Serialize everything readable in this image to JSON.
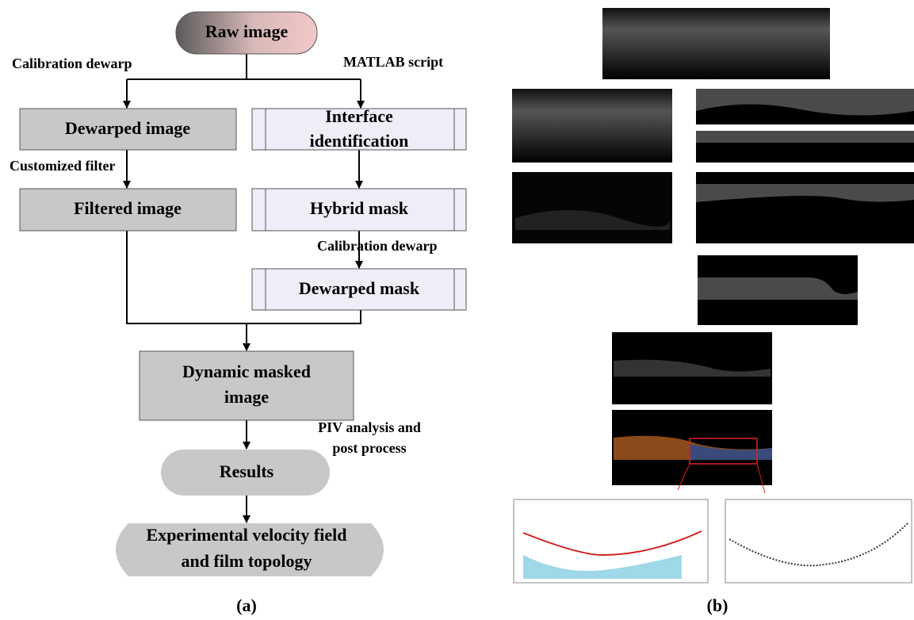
{
  "flowchart": {
    "nodes": [
      {
        "label": [
          "Raw image"
        ]
      },
      {
        "label": [
          "Dewarped image"
        ]
      },
      {
        "label": [
          "Interface",
          "identification"
        ]
      },
      {
        "label": [
          "Filtered image"
        ]
      },
      {
        "label": [
          "Hybrid mask"
        ]
      },
      {
        "label": [
          "Dewarped mask"
        ]
      },
      {
        "label": [
          "Dynamic masked",
          "image"
        ]
      },
      {
        "label": [
          "Results"
        ]
      },
      {
        "label": [
          "Experimental velocity field",
          "and film topology"
        ]
      }
    ],
    "edge_labels": [
      [
        "Calibration dewarp"
      ],
      [
        "MATLAB script"
      ],
      [
        "Customized filter"
      ],
      [
        "Calibration dewarp"
      ],
      [
        "PIV analysis and",
        "post process"
      ]
    ]
  },
  "panel_labels": [
    "(a)",
    "(b)"
  ]
}
